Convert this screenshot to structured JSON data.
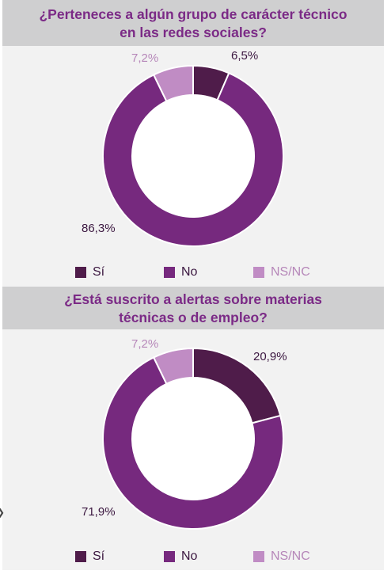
{
  "colors": {
    "si": "#4f1c4a",
    "no": "#76297e",
    "nsnc": "#c08cc4",
    "label_dark": "#3b1740",
    "label_light": "#b687b9"
  },
  "chart_data": [
    {
      "type": "pie",
      "title_lines": [
        "¿Perteneces a algún grupo de carácter técnico",
        "en las redes sociales?"
      ],
      "categories": [
        "Sí",
        "No",
        "NS/NC"
      ],
      "values": [
        6.5,
        86.3,
        7.2
      ],
      "value_labels": [
        "6,5%",
        "86,3%",
        "7,2%"
      ],
      "legend": [
        "Sí",
        "No",
        "NS/NC"
      ]
    },
    {
      "type": "pie",
      "title_lines": [
        "¿Está suscrito a alertas sobre materias",
        "técnicas o de empleo?"
      ],
      "categories": [
        "Sí",
        "No",
        "NS/NC"
      ],
      "values": [
        20.9,
        71.9,
        7.2
      ],
      "value_labels": [
        "20,9%",
        "71,9%",
        "7,2%"
      ],
      "legend": [
        "Sí",
        "No",
        "NS/NC"
      ]
    }
  ]
}
